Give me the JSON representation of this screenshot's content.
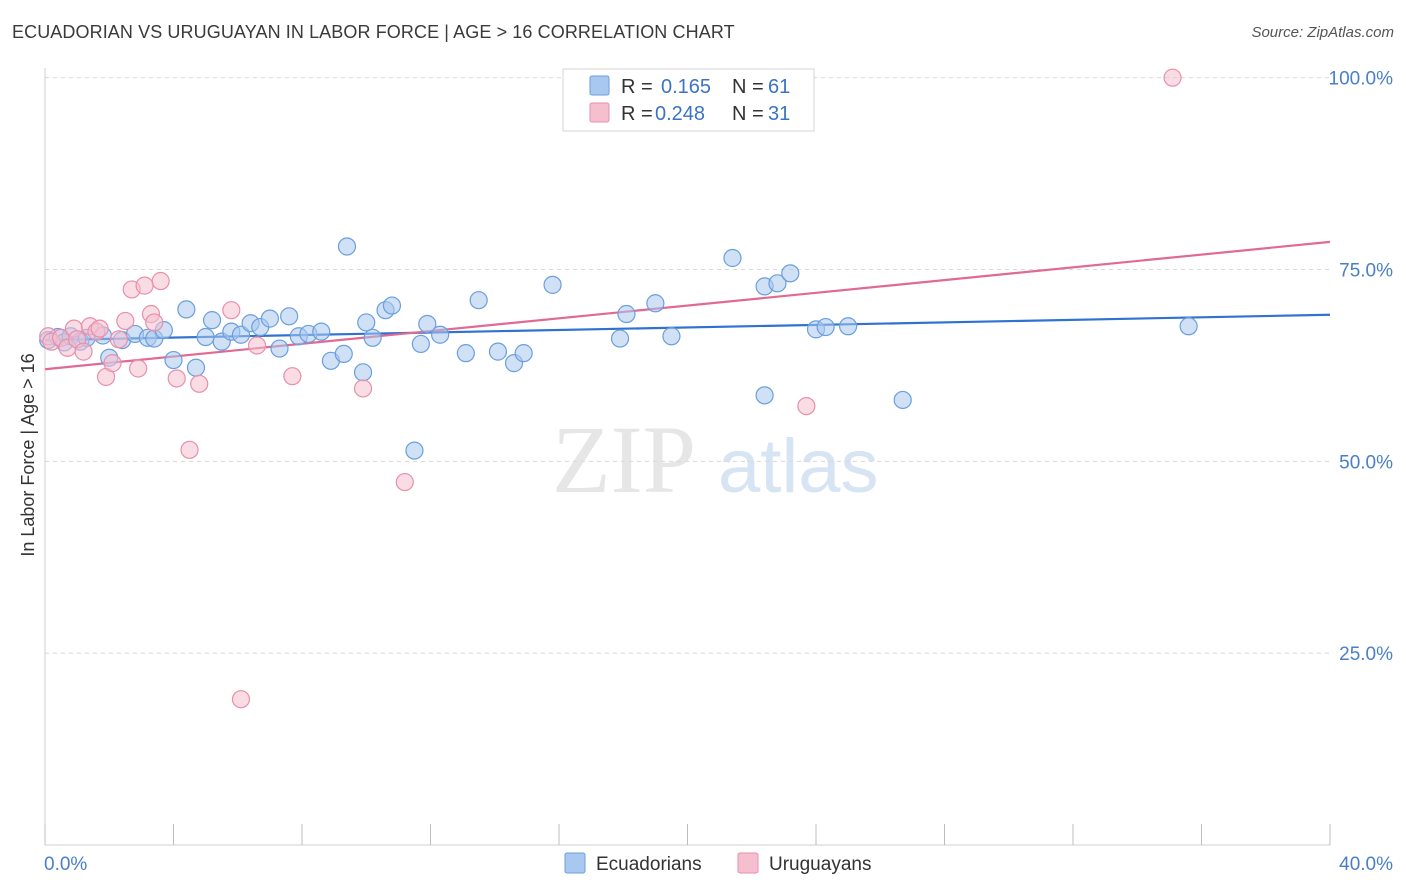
{
  "title": "ECUADORIAN VS URUGUAYAN IN LABOR FORCE | AGE > 16 CORRELATION CHART",
  "source": "Source: ZipAtlas.com",
  "watermark": {
    "zip": "ZIP",
    "atlas": "atlas"
  },
  "legend": [
    {
      "r_label": "R =",
      "r_value": "0.165",
      "n_label": "N =",
      "n_value": "61"
    },
    {
      "r_label": "R =",
      "r_value": "0.248",
      "n_label": "N =",
      "n_value": "31"
    }
  ],
  "colors": {
    "ecuadorians_fill": "#a9c8ef",
    "ecuadorians_stroke": "#6a9fdc",
    "ecuadorians_line": "#2f72d0",
    "uruguayans_fill": "#f6bfd0",
    "uruguayans_stroke": "#e88fab",
    "uruguayans_line": "#e06a93",
    "tick_text": "#4a7fc8",
    "grid": "#d8d8d8"
  },
  "chart_data": {
    "type": "scatter",
    "title": "ECUADORIAN VS URUGUAYAN IN LABOR FORCE | AGE > 16 CORRELATION CHART",
    "xlabel": "",
    "ylabel": "In Labor Force | Age > 16",
    "xlim": [
      0,
      40
    ],
    "ylim": [
      0,
      101
    ],
    "x_tick_labels": [
      "0.0%",
      "40.0%"
    ],
    "y_ticks": [
      25,
      50,
      75,
      100
    ],
    "y_tick_labels": [
      "25.0%",
      "50.0%",
      "75.0%",
      "100.0%"
    ],
    "grid": true,
    "legend_position": "top-center",
    "series": [
      {
        "name": "Ecuadorians",
        "r": 0.165,
        "n": 61,
        "trend": {
          "x": [
            0,
            40
          ],
          "y": [
            65.8,
            69.1
          ]
        },
        "points": [
          [
            0.1,
            65.8
          ],
          [
            0.4,
            66.2
          ],
          [
            0.6,
            65.5
          ],
          [
            0.8,
            66.3
          ],
          [
            1.1,
            65.6
          ],
          [
            1.3,
            66.1
          ],
          [
            1.8,
            66.4
          ],
          [
            2.0,
            63.5
          ],
          [
            2.4,
            65.8
          ],
          [
            2.8,
            66.6
          ],
          [
            3.2,
            66.1
          ],
          [
            3.4,
            66.0
          ],
          [
            3.7,
            67.1
          ],
          [
            4.0,
            63.2
          ],
          [
            4.4,
            69.8
          ],
          [
            4.7,
            62.2
          ],
          [
            5.0,
            66.2
          ],
          [
            5.2,
            68.4
          ],
          [
            5.5,
            65.6
          ],
          [
            5.8,
            66.9
          ],
          [
            6.1,
            66.5
          ],
          [
            6.4,
            68.0
          ],
          [
            6.7,
            67.5
          ],
          [
            7.0,
            68.6
          ],
          [
            7.3,
            64.7
          ],
          [
            7.6,
            68.9
          ],
          [
            7.9,
            66.3
          ],
          [
            8.2,
            66.6
          ],
          [
            8.6,
            66.9
          ],
          [
            8.9,
            63.1
          ],
          [
            9.3,
            64.0
          ],
          [
            9.4,
            78.0
          ],
          [
            9.9,
            61.6
          ],
          [
            10.0,
            68.1
          ],
          [
            10.2,
            66.1
          ],
          [
            10.6,
            69.7
          ],
          [
            10.8,
            70.3
          ],
          [
            11.5,
            51.4
          ],
          [
            11.7,
            65.3
          ],
          [
            11.9,
            67.9
          ],
          [
            12.3,
            66.5
          ],
          [
            13.1,
            64.1
          ],
          [
            13.5,
            71.0
          ],
          [
            14.1,
            64.3
          ],
          [
            14.6,
            62.8
          ],
          [
            14.9,
            64.1
          ],
          [
            15.8,
            73.0
          ],
          [
            17.9,
            66.0
          ],
          [
            18.1,
            69.2
          ],
          [
            19.0,
            70.6
          ],
          [
            19.5,
            66.3
          ],
          [
            21.4,
            76.5
          ],
          [
            22.4,
            58.6
          ],
          [
            22.4,
            72.8
          ],
          [
            22.8,
            73.2
          ],
          [
            23.2,
            74.5
          ],
          [
            24.0,
            67.2
          ],
          [
            24.3,
            67.5
          ],
          [
            25.0,
            67.6
          ],
          [
            26.7,
            58.0
          ],
          [
            35.6,
            67.6
          ]
        ]
      },
      {
        "name": "Uruguayans",
        "r": 0.248,
        "n": 31,
        "trend": {
          "x": [
            0,
            40
          ],
          "y": [
            62.0,
            78.6
          ]
        },
        "points": [
          [
            0.1,
            66.3
          ],
          [
            0.2,
            65.6
          ],
          [
            0.5,
            66.1
          ],
          [
            0.7,
            64.8
          ],
          [
            0.9,
            67.3
          ],
          [
            1.0,
            65.9
          ],
          [
            1.2,
            64.3
          ],
          [
            1.4,
            67.6
          ],
          [
            1.6,
            66.9
          ],
          [
            1.7,
            67.3
          ],
          [
            1.9,
            61.0
          ],
          [
            2.1,
            62.8
          ],
          [
            2.3,
            65.9
          ],
          [
            2.5,
            68.3
          ],
          [
            2.7,
            72.4
          ],
          [
            2.9,
            62.1
          ],
          [
            3.1,
            72.9
          ],
          [
            3.3,
            69.2
          ],
          [
            3.4,
            68.1
          ],
          [
            3.6,
            73.5
          ],
          [
            4.1,
            60.8
          ],
          [
            4.5,
            51.5
          ],
          [
            4.8,
            60.1
          ],
          [
            5.8,
            69.7
          ],
          [
            6.1,
            19.0
          ],
          [
            6.6,
            65.1
          ],
          [
            7.7,
            61.1
          ],
          [
            9.9,
            59.5
          ],
          [
            11.2,
            47.3
          ],
          [
            23.7,
            57.2
          ],
          [
            35.1,
            100.0
          ]
        ]
      }
    ]
  }
}
